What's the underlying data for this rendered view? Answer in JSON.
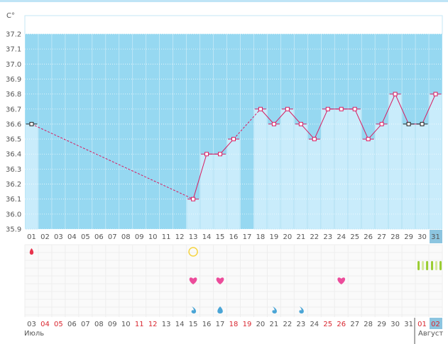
{
  "chart_data": {
    "type": "line",
    "unit_label": "C°",
    "y_ticks": [
      "35.9",
      "36.0",
      "36.1",
      "36.2",
      "36.3",
      "36.4",
      "36.5",
      "36.6",
      "36.7",
      "36.8",
      "36.9",
      "37.0",
      "37.1",
      "37.2"
    ],
    "ylim": [
      35.9,
      37.2
    ],
    "cycle_days": [
      "01",
      "02",
      "03",
      "04",
      "05",
      "06",
      "07",
      "08",
      "09",
      "10",
      "11",
      "12",
      "13",
      "14",
      "15",
      "16",
      "17",
      "18",
      "19",
      "20",
      "21",
      "22",
      "23",
      "24",
      "25",
      "26",
      "27",
      "28",
      "29",
      "30",
      "31"
    ],
    "temperatures": [
      36.6,
      null,
      null,
      null,
      null,
      null,
      null,
      null,
      null,
      null,
      null,
      null,
      36.1,
      36.4,
      36.4,
      36.5,
      null,
      36.7,
      36.6,
      36.7,
      36.6,
      36.5,
      36.7,
      36.7,
      36.7,
      36.5,
      36.6,
      36.8,
      36.6,
      36.6,
      36.8
    ],
    "dashed_segments": [
      [
        1,
        13
      ],
      [
        16,
        18
      ]
    ],
    "black_marker_days": [
      1,
      29,
      30
    ],
    "highlighted_top_label": "31",
    "highlighted_date_label": "02",
    "dates": [
      {
        "d": "03",
        "weekend": false
      },
      {
        "d": "04",
        "weekend": true
      },
      {
        "d": "05",
        "weekend": true
      },
      {
        "d": "06",
        "weekend": false
      },
      {
        "d": "07",
        "weekend": false
      },
      {
        "d": "08",
        "weekend": false
      },
      {
        "d": "09",
        "weekend": false
      },
      {
        "d": "10",
        "weekend": false
      },
      {
        "d": "11",
        "weekend": true
      },
      {
        "d": "12",
        "weekend": true
      },
      {
        "d": "13",
        "weekend": false
      },
      {
        "d": "14",
        "weekend": false
      },
      {
        "d": "15",
        "weekend": false
      },
      {
        "d": "16",
        "weekend": false
      },
      {
        "d": "17",
        "weekend": false
      },
      {
        "d": "18",
        "weekend": true
      },
      {
        "d": "19",
        "weekend": true
      },
      {
        "d": "20",
        "weekend": false
      },
      {
        "d": "21",
        "weekend": false
      },
      {
        "d": "22",
        "weekend": false
      },
      {
        "d": "23",
        "weekend": false
      },
      {
        "d": "24",
        "weekend": false
      },
      {
        "d": "25",
        "weekend": true
      },
      {
        "d": "26",
        "weekend": true
      },
      {
        "d": "27",
        "weekend": false
      },
      {
        "d": "28",
        "weekend": false
      },
      {
        "d": "29",
        "weekend": false
      },
      {
        "d": "30",
        "weekend": false
      },
      {
        "d": "31",
        "weekend": false
      },
      {
        "d": "01",
        "weekend": true
      },
      {
        "d": "02",
        "weekend": true
      }
    ],
    "month_left": "Июль",
    "month_right": "Август",
    "markers": {
      "menstruation_drop_days": [
        1
      ],
      "ovulation_circle_days": [
        13
      ],
      "heart_days": [
        13,
        15,
        24
      ],
      "discharge_half_drop_days": [
        13,
        19,
        21
      ],
      "discharge_full_drop_days": [
        15
      ],
      "pill_days": [
        30,
        31
      ]
    },
    "colors": {
      "background_fill": "#96d8f1",
      "bar_fill": "#c9ecfb",
      "line": "#d81b60",
      "black_marker": "#222222",
      "menstruation": "#e8334d",
      "ovulation_circle": "#f5d442",
      "heart": "#ec4c9b",
      "discharge": "#4aa5d6",
      "pill": "#9acd32",
      "weekend_text": "#d9262f",
      "highlight_cell": "#8cc5e0"
    }
  }
}
